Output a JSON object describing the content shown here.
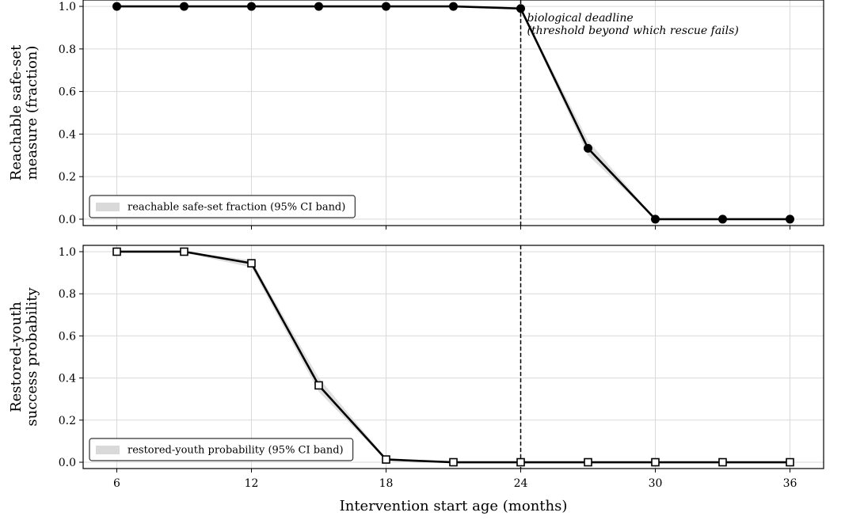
{
  "chart_data": [
    {
      "type": "line",
      "xlabel": "",
      "ylabel": [
        "Reachable safe-set",
        "measure (fraction)"
      ],
      "xlim": [
        4.5,
        37.5
      ],
      "ylim": [
        -0.03,
        1.03
      ],
      "xticks": [
        6,
        12,
        18,
        24,
        30,
        36
      ],
      "xtick_labels": [],
      "yticks": [
        0.0,
        0.2,
        0.4,
        0.6,
        0.8,
        1.0
      ],
      "ytick_labels": [
        "0.0",
        "0.2",
        "0.4",
        "0.6",
        "0.8",
        "1.0"
      ],
      "grid": true,
      "marker": "circle-filled",
      "line_color": "#000000",
      "band_color": "#d9d9d9",
      "x": [
        6,
        9,
        12,
        15,
        18,
        21,
        24,
        27,
        30,
        33,
        36
      ],
      "y": [
        1.0,
        1.0,
        1.0,
        1.0,
        1.0,
        1.0,
        0.99,
        0.333,
        0.0,
        0.0,
        0.0
      ],
      "ci_lower": [
        1.0,
        1.0,
        1.0,
        1.0,
        1.0,
        1.0,
        0.985,
        0.3,
        0.0,
        0.0,
        0.0
      ],
      "ci_upper": [
        1.0,
        1.0,
        1.0,
        1.0,
        1.0,
        1.0,
        0.995,
        0.37,
        0.0,
        0.0,
        0.0
      ],
      "legend": {
        "label": "reachable safe-set fraction (95% CI band)",
        "placement": "lower-left"
      },
      "vline": {
        "x": 24,
        "style": "dashed"
      },
      "annotation": {
        "lines": [
          "biological deadline",
          "(threshold beyond which rescue fails)"
        ],
        "x": 24,
        "y": 0.93
      }
    },
    {
      "type": "line",
      "xlabel": "Intervention start age (months)",
      "ylabel": [
        "Restored-youth",
        "success probability"
      ],
      "xlim": [
        4.5,
        37.5
      ],
      "ylim": [
        -0.03,
        1.03
      ],
      "xticks": [
        6,
        12,
        18,
        24,
        30,
        36
      ],
      "xtick_labels": [
        "6",
        "12",
        "18",
        "24",
        "30",
        "36"
      ],
      "yticks": [
        0.0,
        0.2,
        0.4,
        0.6,
        0.8,
        1.0
      ],
      "ytick_labels": [
        "0.0",
        "0.2",
        "0.4",
        "0.6",
        "0.8",
        "1.0"
      ],
      "grid": true,
      "marker": "square-open",
      "line_color": "#000000",
      "band_color": "#d9d9d9",
      "x": [
        6,
        9,
        12,
        15,
        18,
        21,
        24,
        27,
        30,
        33,
        36
      ],
      "y": [
        1.0,
        1.0,
        0.945,
        0.365,
        0.013,
        0.0,
        0.0,
        0.0,
        0.0,
        0.0,
        0.0
      ],
      "ci_lower": [
        1.0,
        0.995,
        0.925,
        0.335,
        0.008,
        0.0,
        0.0,
        0.0,
        0.0,
        0.0,
        0.0
      ],
      "ci_upper": [
        1.0,
        1.0,
        0.96,
        0.4,
        0.02,
        0.002,
        0.0,
        0.0,
        0.0,
        0.0,
        0.0
      ],
      "legend": {
        "label": "restored-youth probability (95% CI band)",
        "placement": "lower-left"
      },
      "vline": {
        "x": 24,
        "style": "dashed"
      }
    }
  ]
}
